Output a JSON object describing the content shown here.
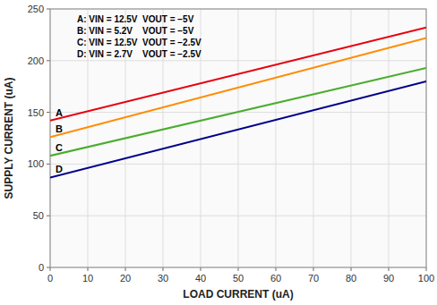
{
  "chart_data": {
    "type": "line",
    "x_label": "LOAD CURRENT (uA)",
    "y_label": "SUPPLY CURRENT (uA)",
    "x": [
      0,
      100
    ],
    "series": [
      {
        "name": "A",
        "color": "#e8000e",
        "values": [
          142,
          232
        ]
      },
      {
        "name": "B",
        "color": "#ff8c00",
        "values": [
          126,
          222
        ]
      },
      {
        "name": "C",
        "color": "#4aad2e",
        "values": [
          108,
          193
        ]
      },
      {
        "name": "D",
        "color": "#00008b",
        "values": [
          87,
          180
        ]
      }
    ],
    "xlim": [
      0,
      100
    ],
    "xticks": [
      0,
      10,
      20,
      30,
      40,
      50,
      60,
      70,
      80,
      90,
      100
    ],
    "ylim": [
      0,
      250
    ],
    "yticks": [
      0,
      50,
      100,
      150,
      200,
      250
    ],
    "grid": true,
    "annotations": [
      "A: VIN = 12.5V  VOUT = −5V",
      "B: VIN = 5.2V    VOUT = −5V",
      "C: VIN = 12.5V  VOUT = −2.5V",
      "D: VIN = 2.7V    VOUT = −2.5V"
    ]
  }
}
